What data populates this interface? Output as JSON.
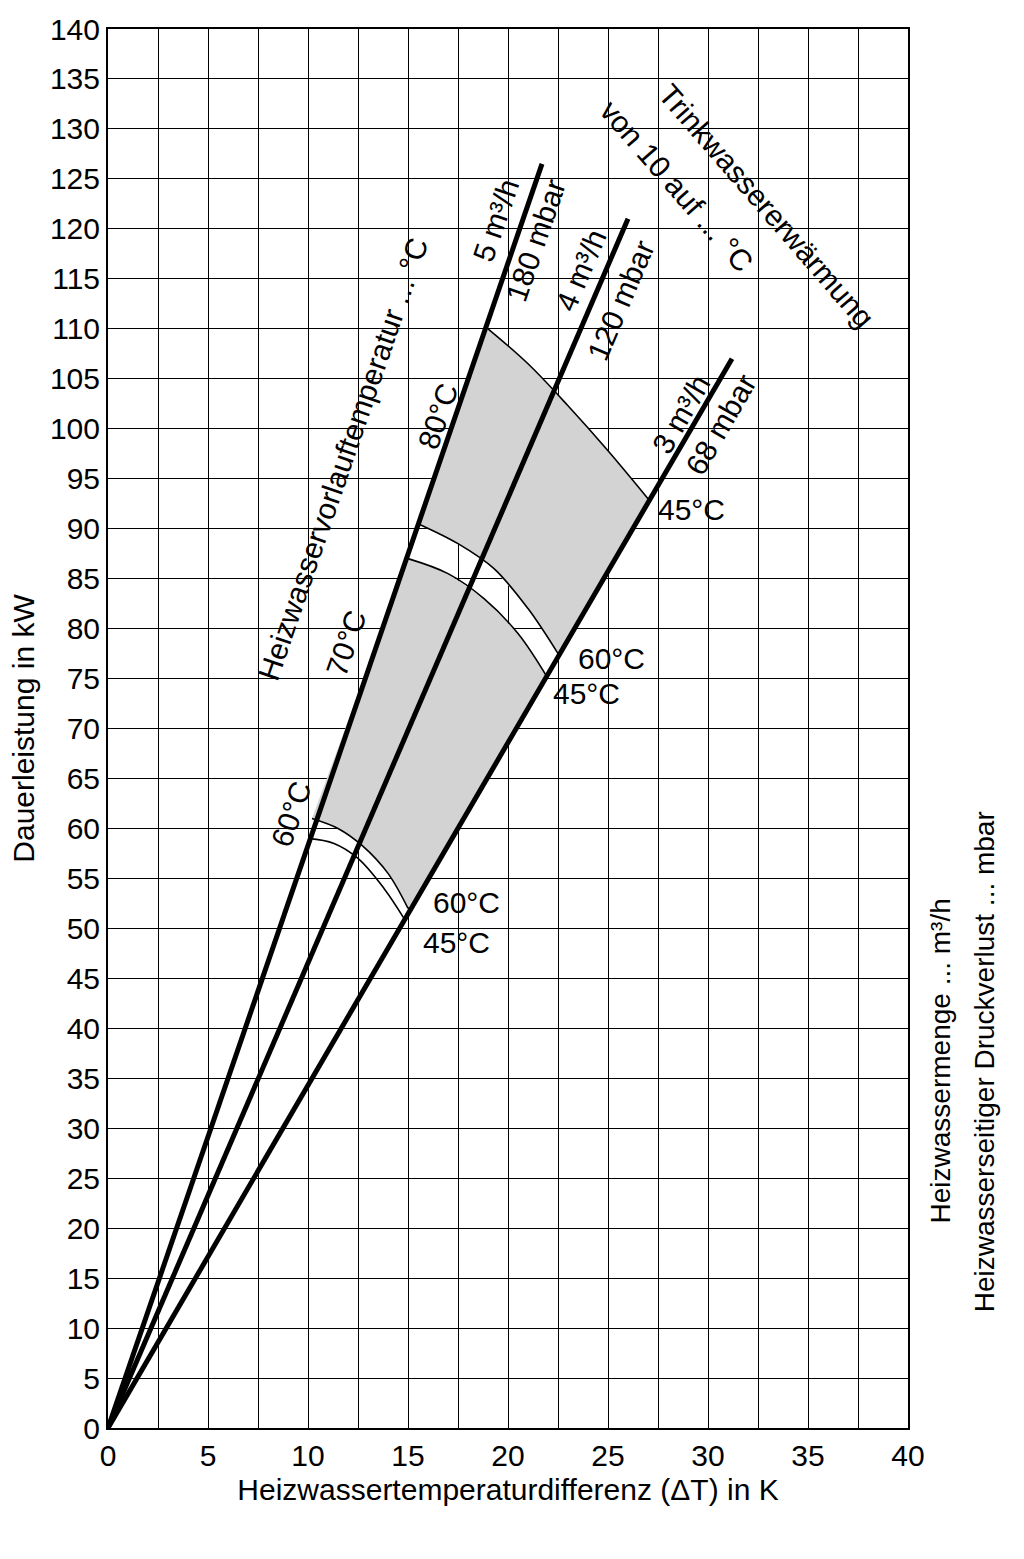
{
  "chart_data": {
    "type": "line",
    "xlabel": "Heizwassertemperaturdifferenz (ΔT) in K",
    "ylabel": "Dauerleistung in kW",
    "xlim": [
      0,
      40
    ],
    "ylim": [
      0,
      140
    ],
    "xticks": [
      0,
      5,
      10,
      15,
      20,
      25,
      30,
      35,
      40
    ],
    "yticks": [
      0,
      5,
      10,
      15,
      20,
      25,
      30,
      35,
      40,
      45,
      50,
      55,
      60,
      65,
      70,
      75,
      80,
      85,
      90,
      95,
      100,
      105,
      110,
      115,
      120,
      125,
      130,
      135,
      140
    ],
    "grid": true,
    "areas": [
      {
        "color": "#d3d3d3",
        "x": [
          15.5,
          19,
          21,
          23,
          25,
          27,
          22.5,
          21,
          19.3,
          17.5,
          15.5
        ],
        "values": [
          90.5,
          110,
          106.5,
          102.3,
          97.8,
          93,
          77.5,
          82,
          86,
          88.5,
          90.5
        ]
      },
      {
        "color": "#d3d3d3",
        "x": [
          10.2,
          15,
          17,
          18.8,
          20.5,
          22,
          15,
          14,
          12.7,
          11.5,
          10.2
        ],
        "values": [
          61,
          87,
          85.5,
          83,
          79.5,
          75,
          52,
          55.5,
          58.3,
          60,
          61
        ]
      }
    ],
    "curves": [
      {
        "color": "#000000",
        "x": [
          19,
          21,
          23,
          25,
          27
        ],
        "values": [
          110,
          106.5,
          102.3,
          97.8,
          93
        ]
      },
      {
        "color": "#000000",
        "x": [
          15.5,
          17.5,
          19.3,
          21,
          22.5
        ],
        "values": [
          90.5,
          88.5,
          86,
          82,
          77.5
        ]
      },
      {
        "color": "#000000",
        "x": [
          15,
          17,
          18.8,
          20.5,
          22
        ],
        "values": [
          87,
          85.5,
          83,
          79.5,
          75
        ]
      },
      {
        "color": "#000000",
        "x": [
          10.2,
          11.5,
          12.7,
          14,
          15
        ],
        "values": [
          61,
          60,
          58.3,
          55.5,
          52
        ]
      },
      {
        "color": "#000000",
        "x": [
          10,
          11.3,
          12.5,
          13.8,
          14.8
        ],
        "values": [
          59,
          58.5,
          57,
          54,
          51
        ]
      }
    ],
    "series": [
      {
        "color": "#000000",
        "x": [
          0,
          21.7
        ],
        "values": [
          0,
          126.5
        ]
      },
      {
        "color": "#000000",
        "x": [
          0,
          26
        ],
        "values": [
          0,
          121
        ]
      },
      {
        "color": "#000000",
        "x": [
          0,
          31.2
        ],
        "values": [
          0,
          107
        ]
      }
    ],
    "annotations": [
      {
        "text": "Trinkwassererwärmung",
        "x": 32.9,
        "y": 122.3
      },
      {
        "text": "von 10 auf ... °C",
        "x": 28.4,
        "y": 124.3
      },
      {
        "text": "Heizwasservorlauftemperatur ... °C",
        "x": 11.75,
        "y": 96.9
      },
      {
        "text": "5 m³/h",
        "x": 19.4,
        "y": 120.8
      },
      {
        "text": "180 mbar",
        "x": 21.4,
        "y": 118.8
      },
      {
        "text": "4 m³/h",
        "x": 23.65,
        "y": 115.8
      },
      {
        "text": "120 mbar",
        "x": 25.65,
        "y": 112.8
      },
      {
        "text": "3 m³/h",
        "x": 28.65,
        "y": 101.4
      },
      {
        "text": "68 mbar",
        "x": 30.65,
        "y": 100.4
      },
      {
        "text": "80°C",
        "x": 16.5,
        "y": 101.2
      },
      {
        "text": "70°C",
        "x": 11.9,
        "y": 78.5
      },
      {
        "text": "60°C",
        "x": 9.15,
        "y": 61.4
      },
      {
        "text": "45°C",
        "x": 29.15,
        "y": 91.9
      },
      {
        "text": "60°C",
        "x": 25.15,
        "y": 77
      },
      {
        "text": "45°C",
        "x": 23.9,
        "y": 73.5
      },
      {
        "text": "60°C",
        "x": 17.9,
        "y": 52.6
      },
      {
        "text": "45°C",
        "x": 17.4,
        "y": 48.6
      }
    ],
    "side_labels": [
      "Heizwassermenge ... m³/h",
      "Heizwasserseitiger Druckverlust ... mbar"
    ]
  }
}
